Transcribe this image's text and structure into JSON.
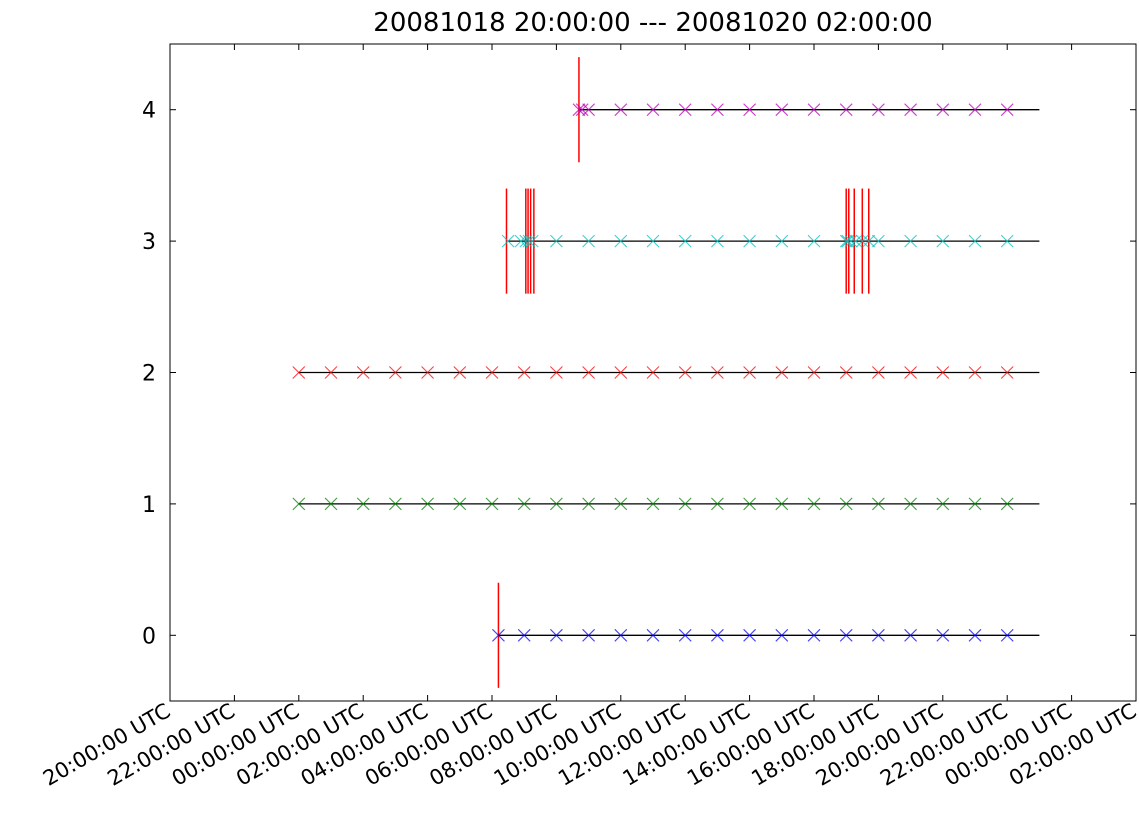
{
  "chart_data": {
    "type": "scatter",
    "title": "20081018 20:00:00 --- 20081020 02:00:00",
    "xlabel": "",
    "ylabel": "",
    "x_unit": "hours from 20081018 20:00:00 UTC",
    "xlim": [
      0,
      30
    ],
    "ylim": [
      -0.5,
      4.5
    ],
    "x_tick_values": [
      0,
      2,
      4,
      6,
      8,
      10,
      12,
      14,
      16,
      18,
      20,
      22,
      24,
      26,
      28,
      30
    ],
    "x_tick_labels": [
      "20:00:00 UTC",
      "22:00:00 UTC",
      "00:00:00 UTC",
      "02:00:00 UTC",
      "04:00:00 UTC",
      "06:00:00 UTC",
      "08:00:00 UTC",
      "10:00:00 UTC",
      "12:00:00 UTC",
      "14:00:00 UTC",
      "16:00:00 UTC",
      "18:00:00 UTC",
      "20:00:00 UTC",
      "22:00:00 UTC",
      "00:00:00 UTC",
      "02:00:00 UTC"
    ],
    "y_tick_values": [
      0,
      1,
      2,
      3,
      4
    ],
    "y_tick_labels": [
      "0",
      "1",
      "2",
      "3",
      "4"
    ],
    "grid": false,
    "legend": "none",
    "marker": "x",
    "series": [
      {
        "y": 0,
        "color": "#0000ff",
        "line_span": [
          10.2,
          27
        ],
        "x": [
          10.2,
          11,
          12,
          13,
          14,
          15,
          16,
          17,
          18,
          19,
          20,
          21,
          22,
          23,
          24,
          25,
          26
        ]
      },
      {
        "y": 1,
        "color": "#008000",
        "line_span": [
          4,
          27
        ],
        "x": [
          4,
          5,
          6,
          7,
          8,
          9,
          10,
          11,
          12,
          13,
          14,
          15,
          16,
          17,
          18,
          19,
          20,
          21,
          22,
          23,
          24,
          25,
          26
        ]
      },
      {
        "y": 2,
        "color": "#ff0000",
        "line_span": [
          4,
          27
        ],
        "x": [
          4,
          5,
          6,
          7,
          8,
          9,
          10,
          11,
          12,
          13,
          14,
          15,
          16,
          17,
          18,
          19,
          20,
          21,
          22,
          23,
          24,
          25,
          26
        ]
      },
      {
        "y": 3,
        "color": "#00bfbf",
        "line_span": [
          10.5,
          27
        ],
        "x": [
          10.5,
          10.9,
          11.05,
          11.15,
          11.25,
          12,
          13,
          14,
          15,
          16,
          17,
          18,
          19,
          20,
          21,
          21.05,
          21.15,
          21.3,
          21.5,
          21.7,
          22,
          23,
          24,
          25,
          26
        ]
      },
      {
        "y": 4,
        "color": "#bf00bf",
        "line_span": [
          12.7,
          27
        ],
        "x": [
          12.7,
          12.8,
          13,
          14,
          15,
          16,
          17,
          18,
          19,
          20,
          21,
          22,
          23,
          24,
          25,
          26
        ]
      }
    ],
    "event_lines": {
      "color": "#ff0000",
      "lines": [
        {
          "x": 10.2,
          "y_center": 0
        },
        {
          "x": 10.45,
          "y_center": 3
        },
        {
          "x": 11.05,
          "y_center": 3
        },
        {
          "x": 11.12,
          "y_center": 3
        },
        {
          "x": 11.2,
          "y_center": 3
        },
        {
          "x": 11.3,
          "y_center": 3
        },
        {
          "x": 21.0,
          "y_center": 3
        },
        {
          "x": 21.08,
          "y_center": 3
        },
        {
          "x": 21.25,
          "y_center": 3
        },
        {
          "x": 21.5,
          "y_center": 3
        },
        {
          "x": 21.7,
          "y_center": 3
        },
        {
          "x": 12.7,
          "y_center": 4
        }
      ]
    }
  }
}
